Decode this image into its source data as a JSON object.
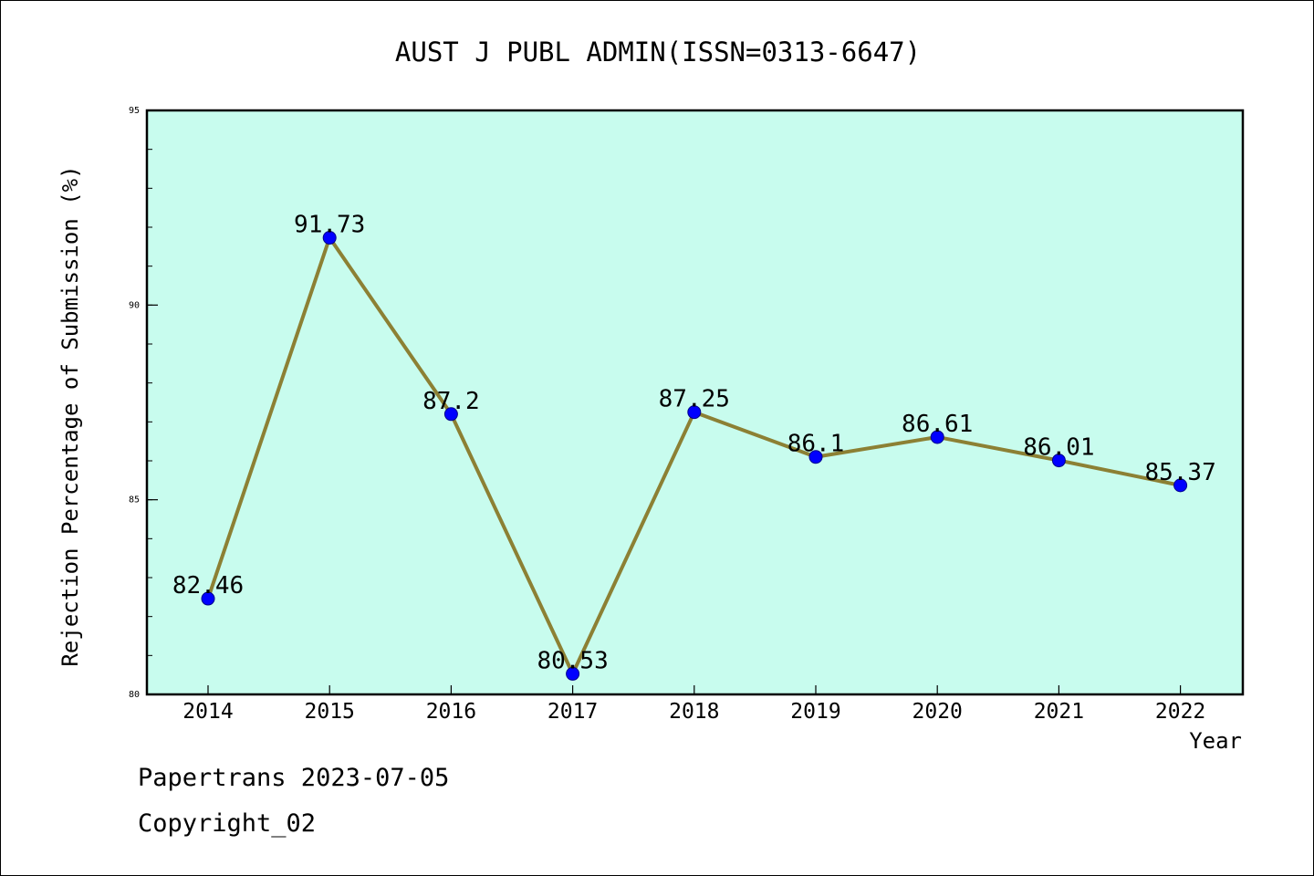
{
  "chart_data": {
    "type": "line",
    "title": "AUST J PUBL ADMIN(ISSN=0313-6647)",
    "xlabel": "Year",
    "ylabel": "Rejection Percentage of Submission (%)",
    "x": [
      "2014",
      "2015",
      "2016",
      "2017",
      "2018",
      "2019",
      "2020",
      "2021",
      "2022"
    ],
    "series": [
      {
        "values": [
          82.46,
          91.73,
          87.2,
          80.53,
          87.25,
          86.1,
          86.61,
          86.01,
          85.37
        ],
        "labels": [
          "82.46",
          "91.73",
          "87.2",
          "80.53",
          "87.25",
          "86.1",
          "86.61",
          "86.01",
          "85.37"
        ]
      }
    ],
    "ylim": [
      80,
      95
    ],
    "yticks": [
      "80",
      "85",
      "90",
      "95"
    ],
    "grid": false,
    "legend": "none",
    "colors": {
      "plot_background": "#c8fcee",
      "line": "#8c8034",
      "marker": "#0000ff"
    }
  },
  "footer": {
    "source": "Papertrans 2023-07-05",
    "copyright": "Copyright_02"
  }
}
